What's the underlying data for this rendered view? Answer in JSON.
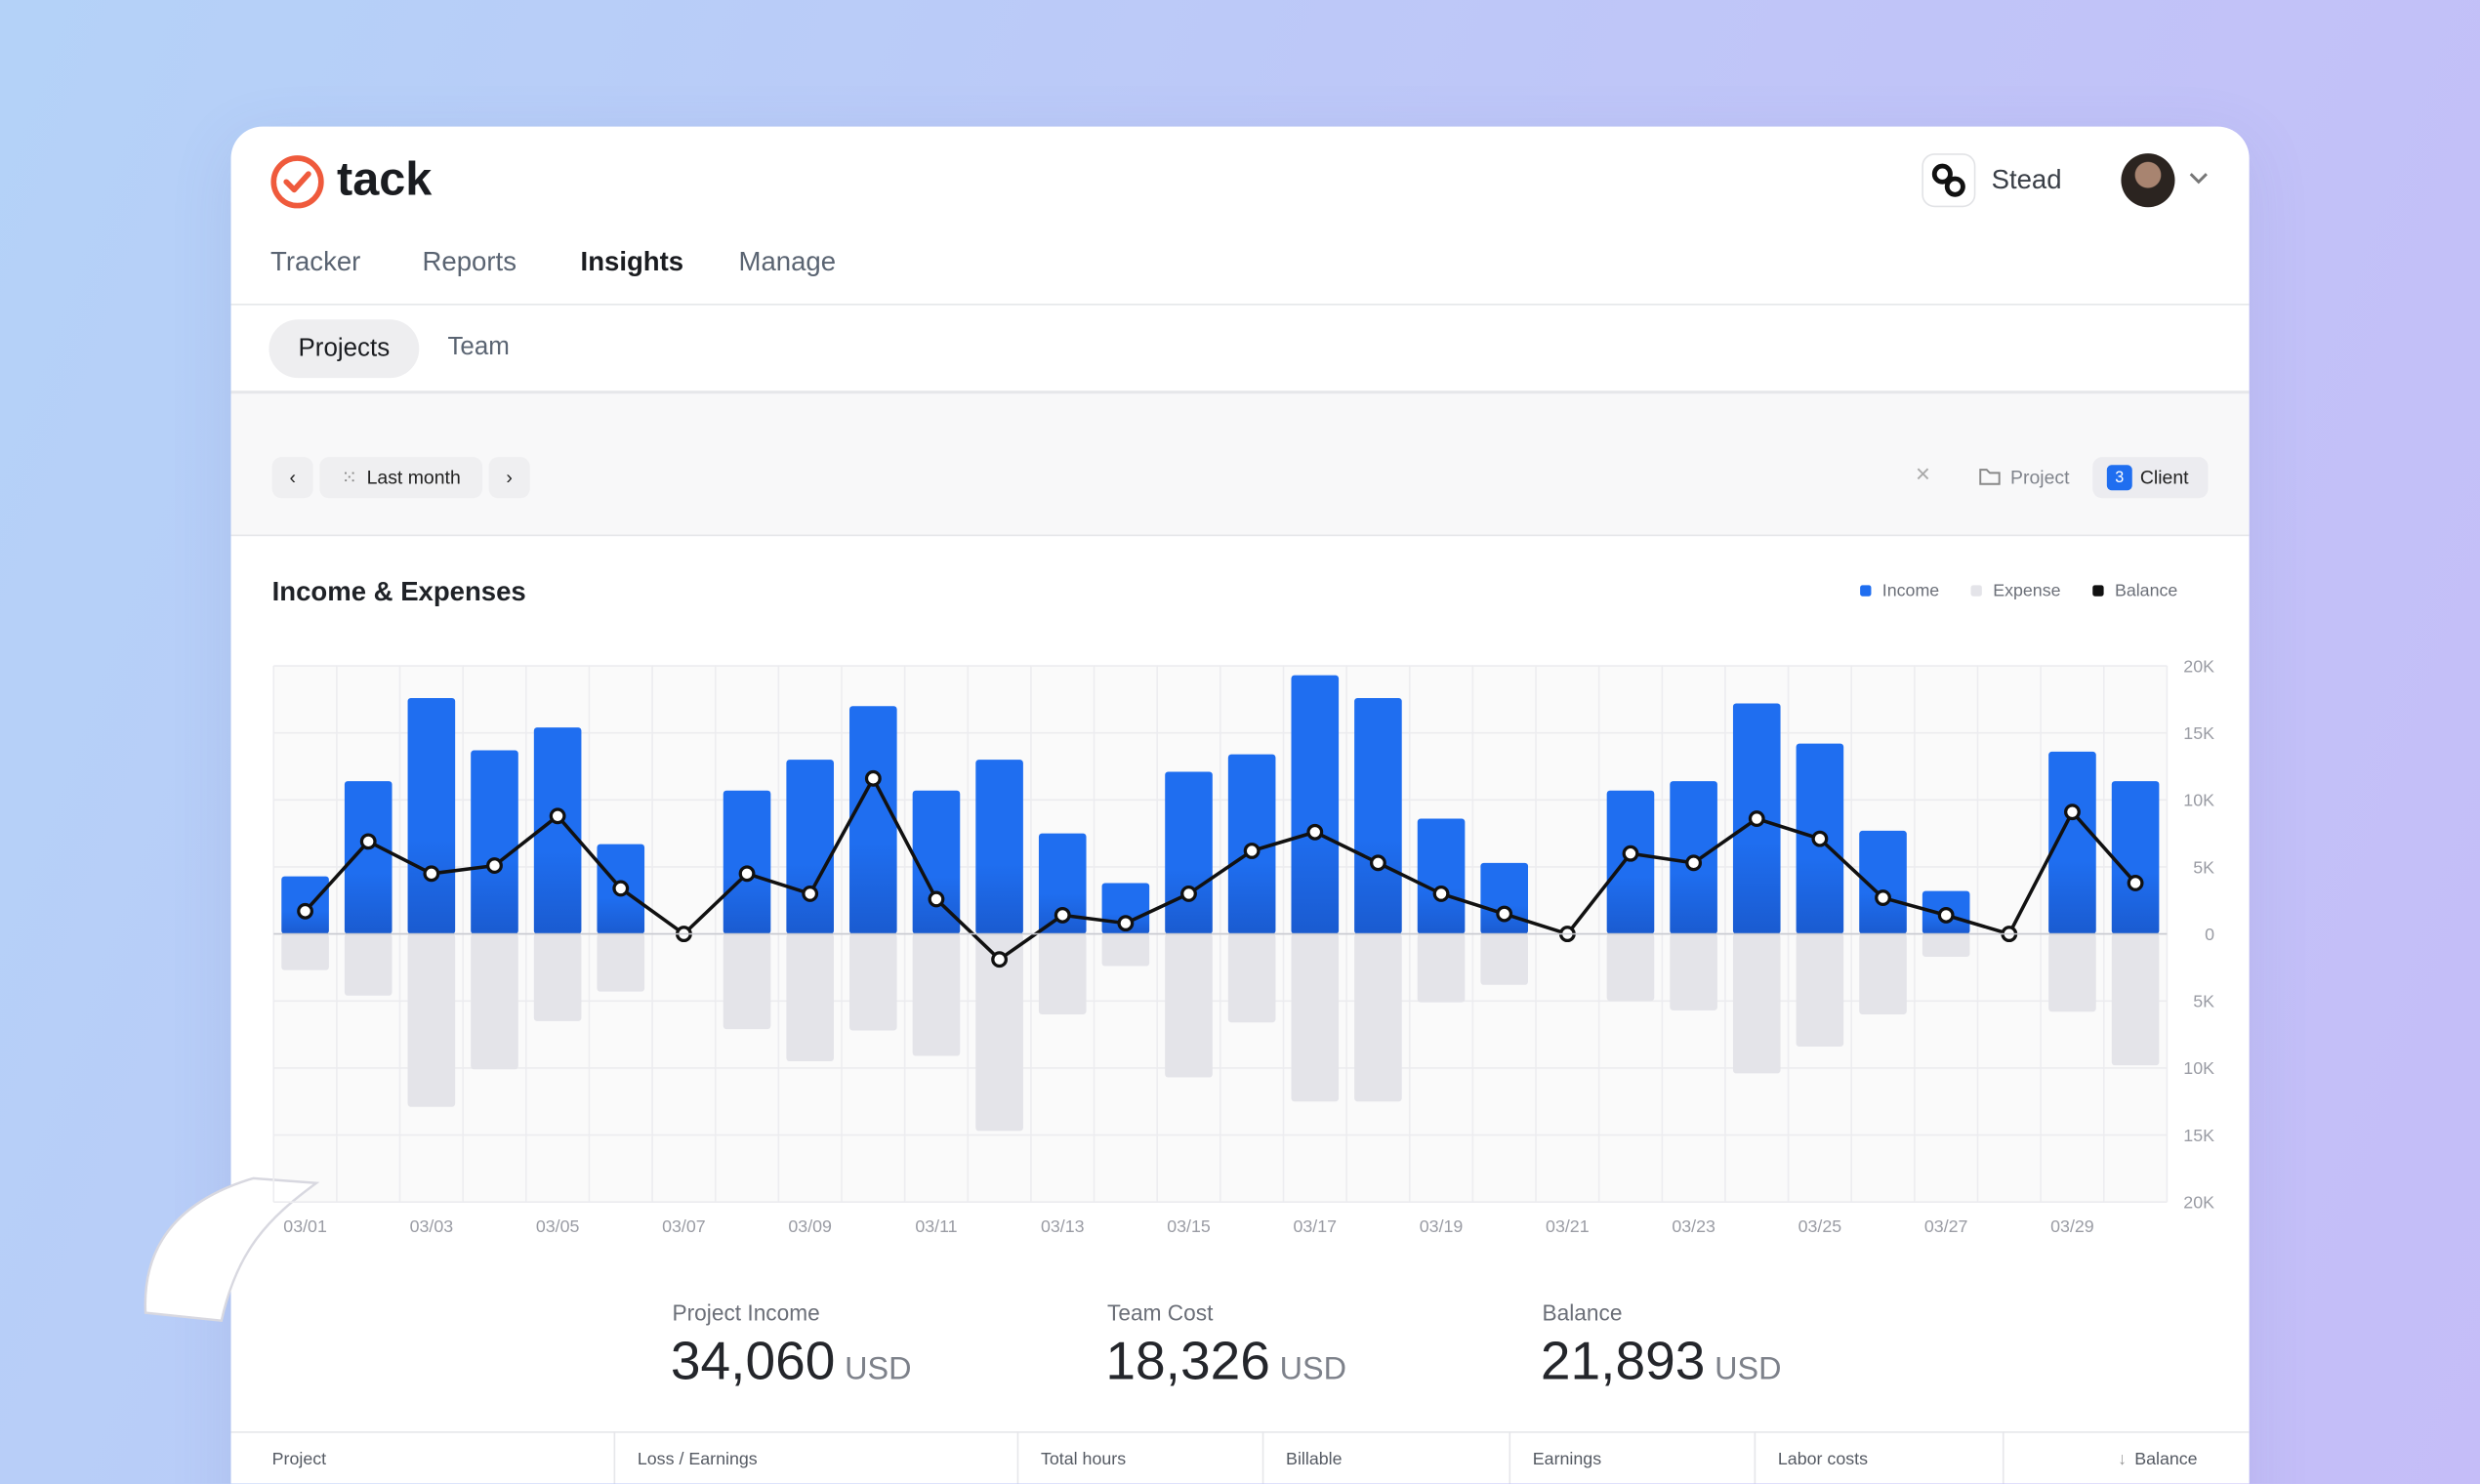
{
  "header": {
    "brand": "tack",
    "workspace": "Stead"
  },
  "nav": [
    "Tracker",
    "Reports",
    "Insights",
    "Manage"
  ],
  "tabs": [
    "Projects",
    "Team"
  ],
  "filters": {
    "period": "Last month",
    "project": "Project",
    "client_count": "3",
    "client": "Client"
  },
  "chart_data": {
    "type": "bar",
    "title": "Income & Expenses",
    "categories": [
      "03/01",
      null,
      "03/03",
      null,
      "03/05",
      null,
      "03/07",
      null,
      "03/09",
      null,
      "03/11",
      null,
      "03/13",
      null,
      "03/15",
      null,
      "03/17",
      null,
      "03/19",
      null,
      "03/21",
      null,
      "03/23",
      null,
      "03/25",
      null,
      "03/27",
      null,
      "03/29",
      null
    ],
    "series": [
      {
        "name": "Income",
        "color": "#1f6ef0",
        "values": [
          4300,
          11400,
          17600,
          13700,
          15400,
          6700,
          0,
          10700,
          13000,
          17000,
          10700,
          13000,
          7500,
          3800,
          12100,
          13400,
          19300,
          17600,
          8600,
          5300,
          0,
          10700,
          11400,
          17200,
          14200,
          7700,
          3200,
          0,
          13600,
          11400
        ]
      },
      {
        "name": "Expense",
        "color": "#e4e4e9",
        "values": [
          -2700,
          -4600,
          -12900,
          -10100,
          -6500,
          -4300,
          0,
          -7100,
          -9500,
          -7200,
          -9100,
          -14700,
          -6000,
          -2400,
          -10700,
          -6600,
          -12500,
          -12500,
          -5100,
          -3800,
          0,
          -5000,
          -5700,
          -10400,
          -8400,
          -6000,
          -1700,
          0,
          -5800,
          -9800
        ]
      },
      {
        "name": "Balance",
        "color": "#111111",
        "values": [
          1700,
          6900,
          4500,
          5100,
          8800,
          3400,
          0,
          4500,
          3000,
          11600,
          2600,
          -1900,
          1400,
          800,
          3000,
          6200,
          7600,
          5300,
          3000,
          1500,
          0,
          6000,
          5300,
          8600,
          7100,
          2700,
          1400,
          0,
          9100,
          3800
        ]
      }
    ],
    "ylim": [
      -20000,
      20000
    ],
    "yticks": [
      {
        "value": 20000,
        "label": "20K"
      },
      {
        "value": 15000,
        "label": "15K"
      },
      {
        "value": 10000,
        "label": "10K"
      },
      {
        "value": 5000,
        "label": "5K"
      },
      0,
      {
        "value": -5000,
        "label": "5K"
      },
      {
        "value": -10000,
        "label": "10K"
      },
      {
        "value": -15000,
        "label": "15K"
      },
      {
        "value": -20000,
        "label": "20K"
      }
    ],
    "grid": true,
    "legend": "top-right"
  },
  "stats": [
    {
      "label": "Project Income",
      "value": "34,060",
      "unit": "USD"
    },
    {
      "label": "Team Cost",
      "value": "18,326",
      "unit": "USD"
    },
    {
      "label": "Balance",
      "value": "21,893",
      "unit": "USD"
    }
  ],
  "table": {
    "columns": [
      "Project",
      "Loss / Earnings",
      "Total hours",
      "Billable",
      "Earnings",
      "Labor costs",
      "Balance"
    ]
  }
}
